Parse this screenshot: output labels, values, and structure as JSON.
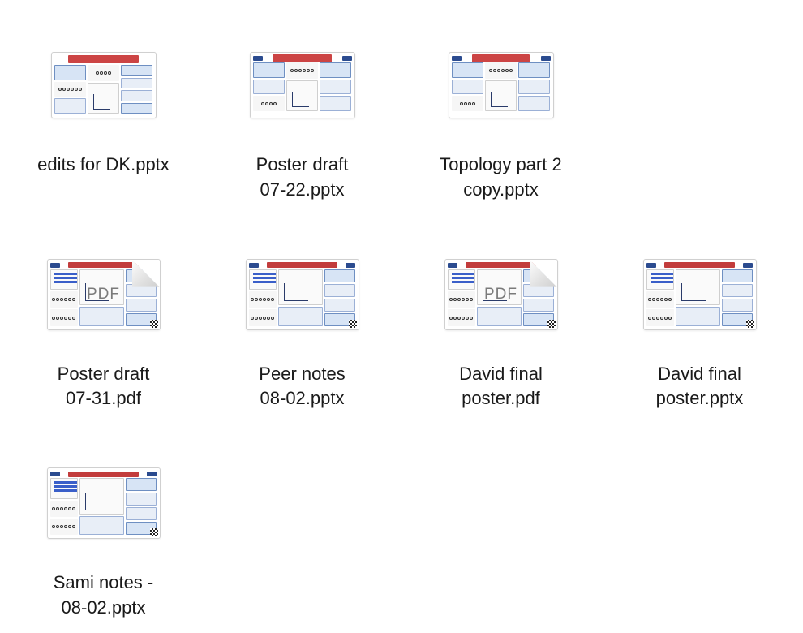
{
  "view": {
    "type": "icon-grid",
    "columns": 4,
    "background_color": "#ffffff",
    "label_fontsize": 22,
    "label_color": "#1a1a1a"
  },
  "poster_theme": {
    "title_color": "#c53a3a",
    "box_blue_fill": "#e8eef7",
    "box_blue_border": "#9bb0d6",
    "box_blue_header": "#d7e4f5",
    "chart_axis_color": "#2a3b6a",
    "bar_color": "#3a5fc9",
    "logo_color": "#2b4b8f"
  },
  "files": [
    {
      "name": "edits for DK.pptx",
      "type": "pptx",
      "pdf_badge": false,
      "has_curl": false,
      "poster_variant": "a",
      "thumb_size": "small"
    },
    {
      "name": "Poster draft\n07-22.pptx",
      "type": "pptx",
      "pdf_badge": false,
      "has_curl": false,
      "poster_variant": "a",
      "thumb_size": "small"
    },
    {
      "name": "Topology part 2\ncopy.pptx",
      "type": "pptx",
      "pdf_badge": false,
      "has_curl": false,
      "poster_variant": "a",
      "thumb_size": "small"
    },
    {
      "empty": true
    },
    {
      "name": "Poster draft\n07-31.pdf",
      "type": "pdf",
      "pdf_badge": true,
      "pdf_badge_text": "PDF",
      "has_curl": true,
      "poster_variant": "b",
      "thumb_size": "wide"
    },
    {
      "name": "Peer notes\n08-02.pptx",
      "type": "pptx",
      "pdf_badge": false,
      "has_curl": false,
      "poster_variant": "b",
      "thumb_size": "wide"
    },
    {
      "name": "David final\nposter.pdf",
      "type": "pdf",
      "pdf_badge": true,
      "pdf_badge_text": "PDF",
      "has_curl": true,
      "poster_variant": "b",
      "thumb_size": "wide"
    },
    {
      "name": "David final\nposter.pptx",
      "type": "pptx",
      "pdf_badge": false,
      "has_curl": false,
      "poster_variant": "b",
      "thumb_size": "wide"
    },
    {
      "name": "Sami notes -\n08-02.pptx",
      "type": "pptx",
      "pdf_badge": false,
      "has_curl": false,
      "poster_variant": "b",
      "thumb_size": "wide"
    }
  ]
}
